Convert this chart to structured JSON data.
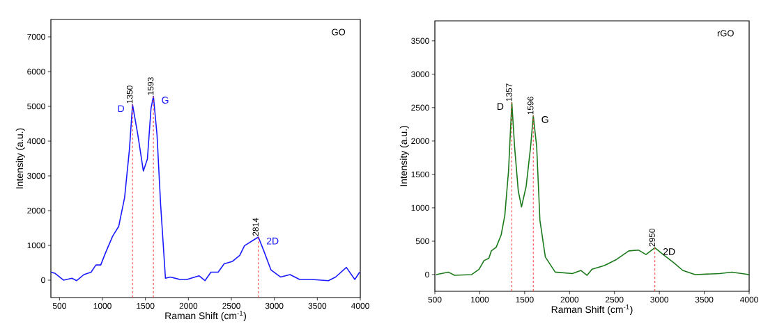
{
  "chart_data": [
    {
      "type": "line",
      "xlabel": "Raman Shift (cm$^{-1}$)",
      "ylabel": "Intensity (a.u.)",
      "x": [
        402,
        450,
        547,
        645,
        700,
        784,
        868,
        924,
        980,
        1035,
        1119,
        1189,
        1258,
        1314,
        1350,
        1412,
        1476,
        1523,
        1565,
        1593,
        1635,
        1677,
        1733,
        1789,
        1900,
        1984,
        2123,
        2193,
        2262,
        2346,
        2416,
        2513,
        2597,
        2653,
        2765,
        2814,
        2876,
        2960,
        3071,
        3183,
        3294,
        3434,
        3629,
        3713,
        3838,
        3936,
        3992
      ],
      "series": [
        {
          "color": "#1a1aff",
          "values": [
            229,
            194,
            0,
            55,
            -14,
            160,
            229,
            437,
            437,
            783,
            1268,
            1545,
            2377,
            3763,
            5050,
            4179,
            3139,
            3486,
            4941,
            5290,
            4179,
            2169,
            55,
            90,
            21,
            21,
            125,
            -14,
            229,
            229,
            471,
            541,
            714,
            991,
            1164,
            1240,
            852,
            298,
            90,
            160,
            21,
            21,
            -14,
            90,
            367,
            21,
            229
          ]
        }
      ],
      "xlim": [
        400,
        4000
      ],
      "ylim": [
        -500,
        7500
      ],
      "xticks": [
        500,
        1000,
        1500,
        2000,
        2500,
        3000,
        3500,
        4000
      ],
      "yticks": [
        0,
        1000,
        2000,
        3000,
        4000,
        5000,
        6000,
        7000
      ],
      "ref_lines": [
        {
          "axis": "x",
          "value": 1350,
          "label": "1350",
          "color": "#ff3333",
          "line_style": "dashed"
        },
        {
          "axis": "x",
          "value": 1593,
          "label": "1593",
          "color": "#ff3333",
          "line_style": "dashed"
        },
        {
          "axis": "x",
          "value": 2814,
          "label": "2814",
          "color": "#ff3333",
          "line_style": "dashed"
        }
      ],
      "annotations": [
        "GO",
        {
          "text": "D",
          "x": 1350,
          "y": 5050
        },
        {
          "text": "G",
          "x": 1593,
          "y": 5290
        },
        {
          "text": "2D",
          "x": 2814,
          "y": 1240
        }
      ]
    },
    {
      "type": "line",
      "xlabel": "Raman Shift (cm$^{-1}$)",
      "ylabel": "Intensity (a.u.)",
      "x": [
        514,
        650,
        719,
        910,
        992,
        1047,
        1101,
        1129,
        1183,
        1238,
        1279,
        1320,
        1357,
        1388,
        1429,
        1465,
        1517,
        1566,
        1596,
        1634,
        1670,
        1730,
        1840,
        2031,
        2127,
        2195,
        2250,
        2387,
        2523,
        2660,
        2769,
        2851,
        2950,
        3042,
        3165,
        3261,
        3398,
        3672,
        3808,
        4000
      ],
      "series": [
        {
          "color": "#1a7a1a",
          "values": [
            0,
            37,
            -11,
            0,
            80,
            209,
            245,
            355,
            410,
            593,
            886,
            1545,
            2577,
            1911,
            1252,
            1014,
            1325,
            1911,
            2379,
            1911,
            813,
            264,
            37,
            15,
            62,
            -11,
            80,
            135,
            227,
            355,
            366,
            300,
            403,
            300,
            172,
            62,
            0,
            15,
            37,
            0
          ]
        }
      ],
      "xlim": [
        500,
        4000
      ],
      "ylim": [
        -250,
        3800
      ],
      "xticks": [
        500,
        1000,
        1500,
        2000,
        2500,
        3000,
        3500,
        4000
      ],
      "yticks": [
        0,
        500,
        1000,
        1500,
        2000,
        2500,
        3000,
        3500
      ],
      "ref_lines": [
        {
          "axis": "x",
          "value": 1357,
          "label": "1357",
          "color": "#ff3333",
          "line_style": "dashed"
        },
        {
          "axis": "x",
          "value": 1596,
          "label": "1596",
          "color": "#ff3333",
          "line_style": "dashed"
        },
        {
          "axis": "x",
          "value": 2950,
          "label": "2950",
          "color": "#ff3333",
          "line_style": "dashed"
        }
      ],
      "annotations": [
        "rGO",
        {
          "text": "D",
          "x": 1357,
          "y": 2577
        },
        {
          "text": "G",
          "x": 1596,
          "y": 2379
        },
        {
          "text": "2D",
          "x": 2950,
          "y": 403
        }
      ]
    }
  ]
}
